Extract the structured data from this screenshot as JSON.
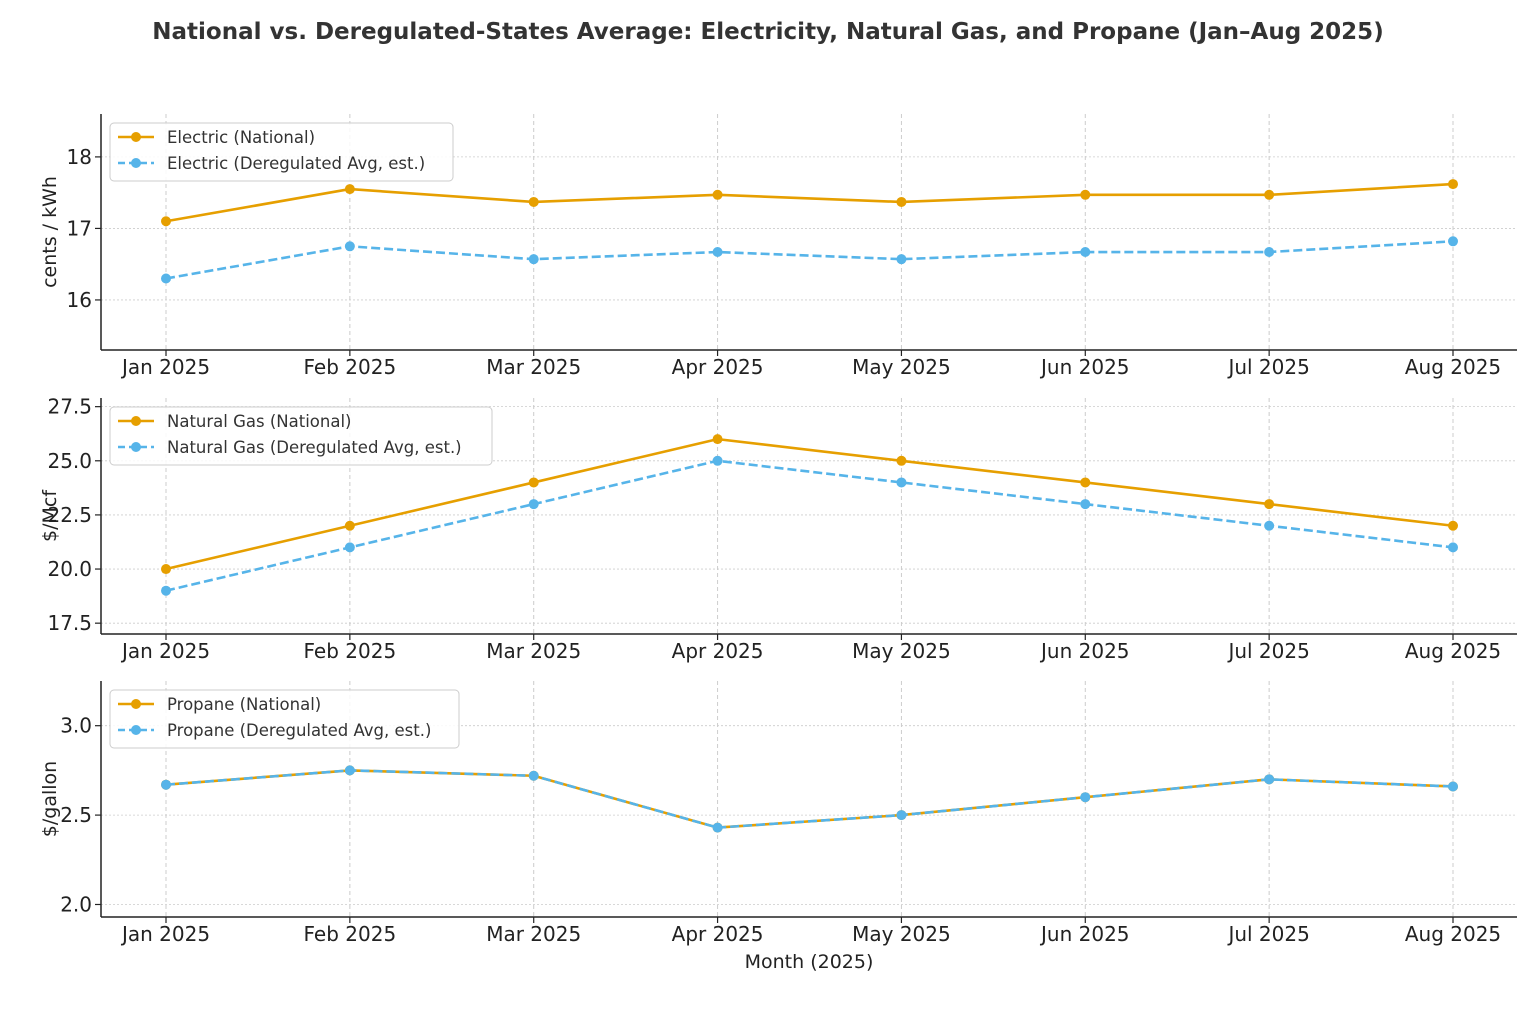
{
  "figure": {
    "title": "National vs. Deregulated-States Average: Electricity, Natural Gas, and Propane (Jan–Aug 2025)",
    "xlabel": "Month (2025)"
  },
  "colors": {
    "national": "#E69F00",
    "deregulated": "#56B4E9",
    "grid": "#cccccc",
    "axis": "#222222"
  },
  "chart_data": [
    {
      "type": "line",
      "categories": [
        "Jan 2025",
        "Feb 2025",
        "Mar 2025",
        "Apr 2025",
        "May 2025",
        "Jun 2025",
        "Jul 2025",
        "Aug 2025"
      ],
      "ylabel": "cents / kWh",
      "ylim": [
        15.3,
        18.6
      ],
      "yticks": [
        16,
        17,
        18
      ],
      "yticklabels": [
        "16",
        "17",
        "18"
      ],
      "grid": true,
      "legend": "top-left",
      "series": [
        {
          "name": "Electric (National)",
          "style": "solid",
          "values": [
            17.1,
            17.55,
            17.37,
            17.47,
            17.37,
            17.47,
            17.47,
            17.62
          ]
        },
        {
          "name": "Electric (Deregulated Avg, est.)",
          "style": "dashed",
          "values": [
            16.3,
            16.75,
            16.57,
            16.67,
            16.57,
            16.67,
            16.67,
            16.82
          ]
        }
      ]
    },
    {
      "type": "line",
      "categories": [
        "Jan 2025",
        "Feb 2025",
        "Mar 2025",
        "Apr 2025",
        "May 2025",
        "Jun 2025",
        "Jul 2025",
        "Aug 2025"
      ],
      "ylabel": "$/Mcf",
      "ylim": [
        17.0,
        27.9
      ],
      "yticks": [
        17.5,
        20.0,
        22.5,
        25.0,
        27.5
      ],
      "yticklabels": [
        "17.5",
        "20.0",
        "22.5",
        "25.0",
        "27.5"
      ],
      "grid": true,
      "legend": "top-left",
      "series": [
        {
          "name": "Natural Gas (National)",
          "style": "solid",
          "values": [
            20,
            22,
            24,
            26,
            25,
            24,
            23,
            22
          ]
        },
        {
          "name": "Natural Gas (Deregulated Avg, est.)",
          "style": "dashed",
          "values": [
            19,
            21,
            23,
            25,
            24,
            23,
            22,
            21
          ]
        }
      ]
    },
    {
      "type": "line",
      "categories": [
        "Jan 2025",
        "Feb 2025",
        "Mar 2025",
        "Apr 2025",
        "May 2025",
        "Jun 2025",
        "Jul 2025",
        "Aug 2025"
      ],
      "ylabel": "$/gallon",
      "ylim": [
        1.93,
        3.25
      ],
      "yticks": [
        2.0,
        2.5,
        3.0
      ],
      "yticklabels": [
        "2.0",
        "2.5",
        "3.0"
      ],
      "grid": true,
      "legend": "top-left",
      "series": [
        {
          "name": "Propane (National)",
          "style": "solid",
          "values": [
            2.67,
            2.75,
            2.72,
            2.43,
            2.5,
            2.6,
            2.7,
            2.66
          ]
        },
        {
          "name": "Propane (Deregulated Avg, est.)",
          "style": "dashed",
          "values": [
            2.67,
            2.75,
            2.72,
            2.43,
            2.5,
            2.6,
            2.7,
            2.66
          ]
        }
      ]
    }
  ]
}
